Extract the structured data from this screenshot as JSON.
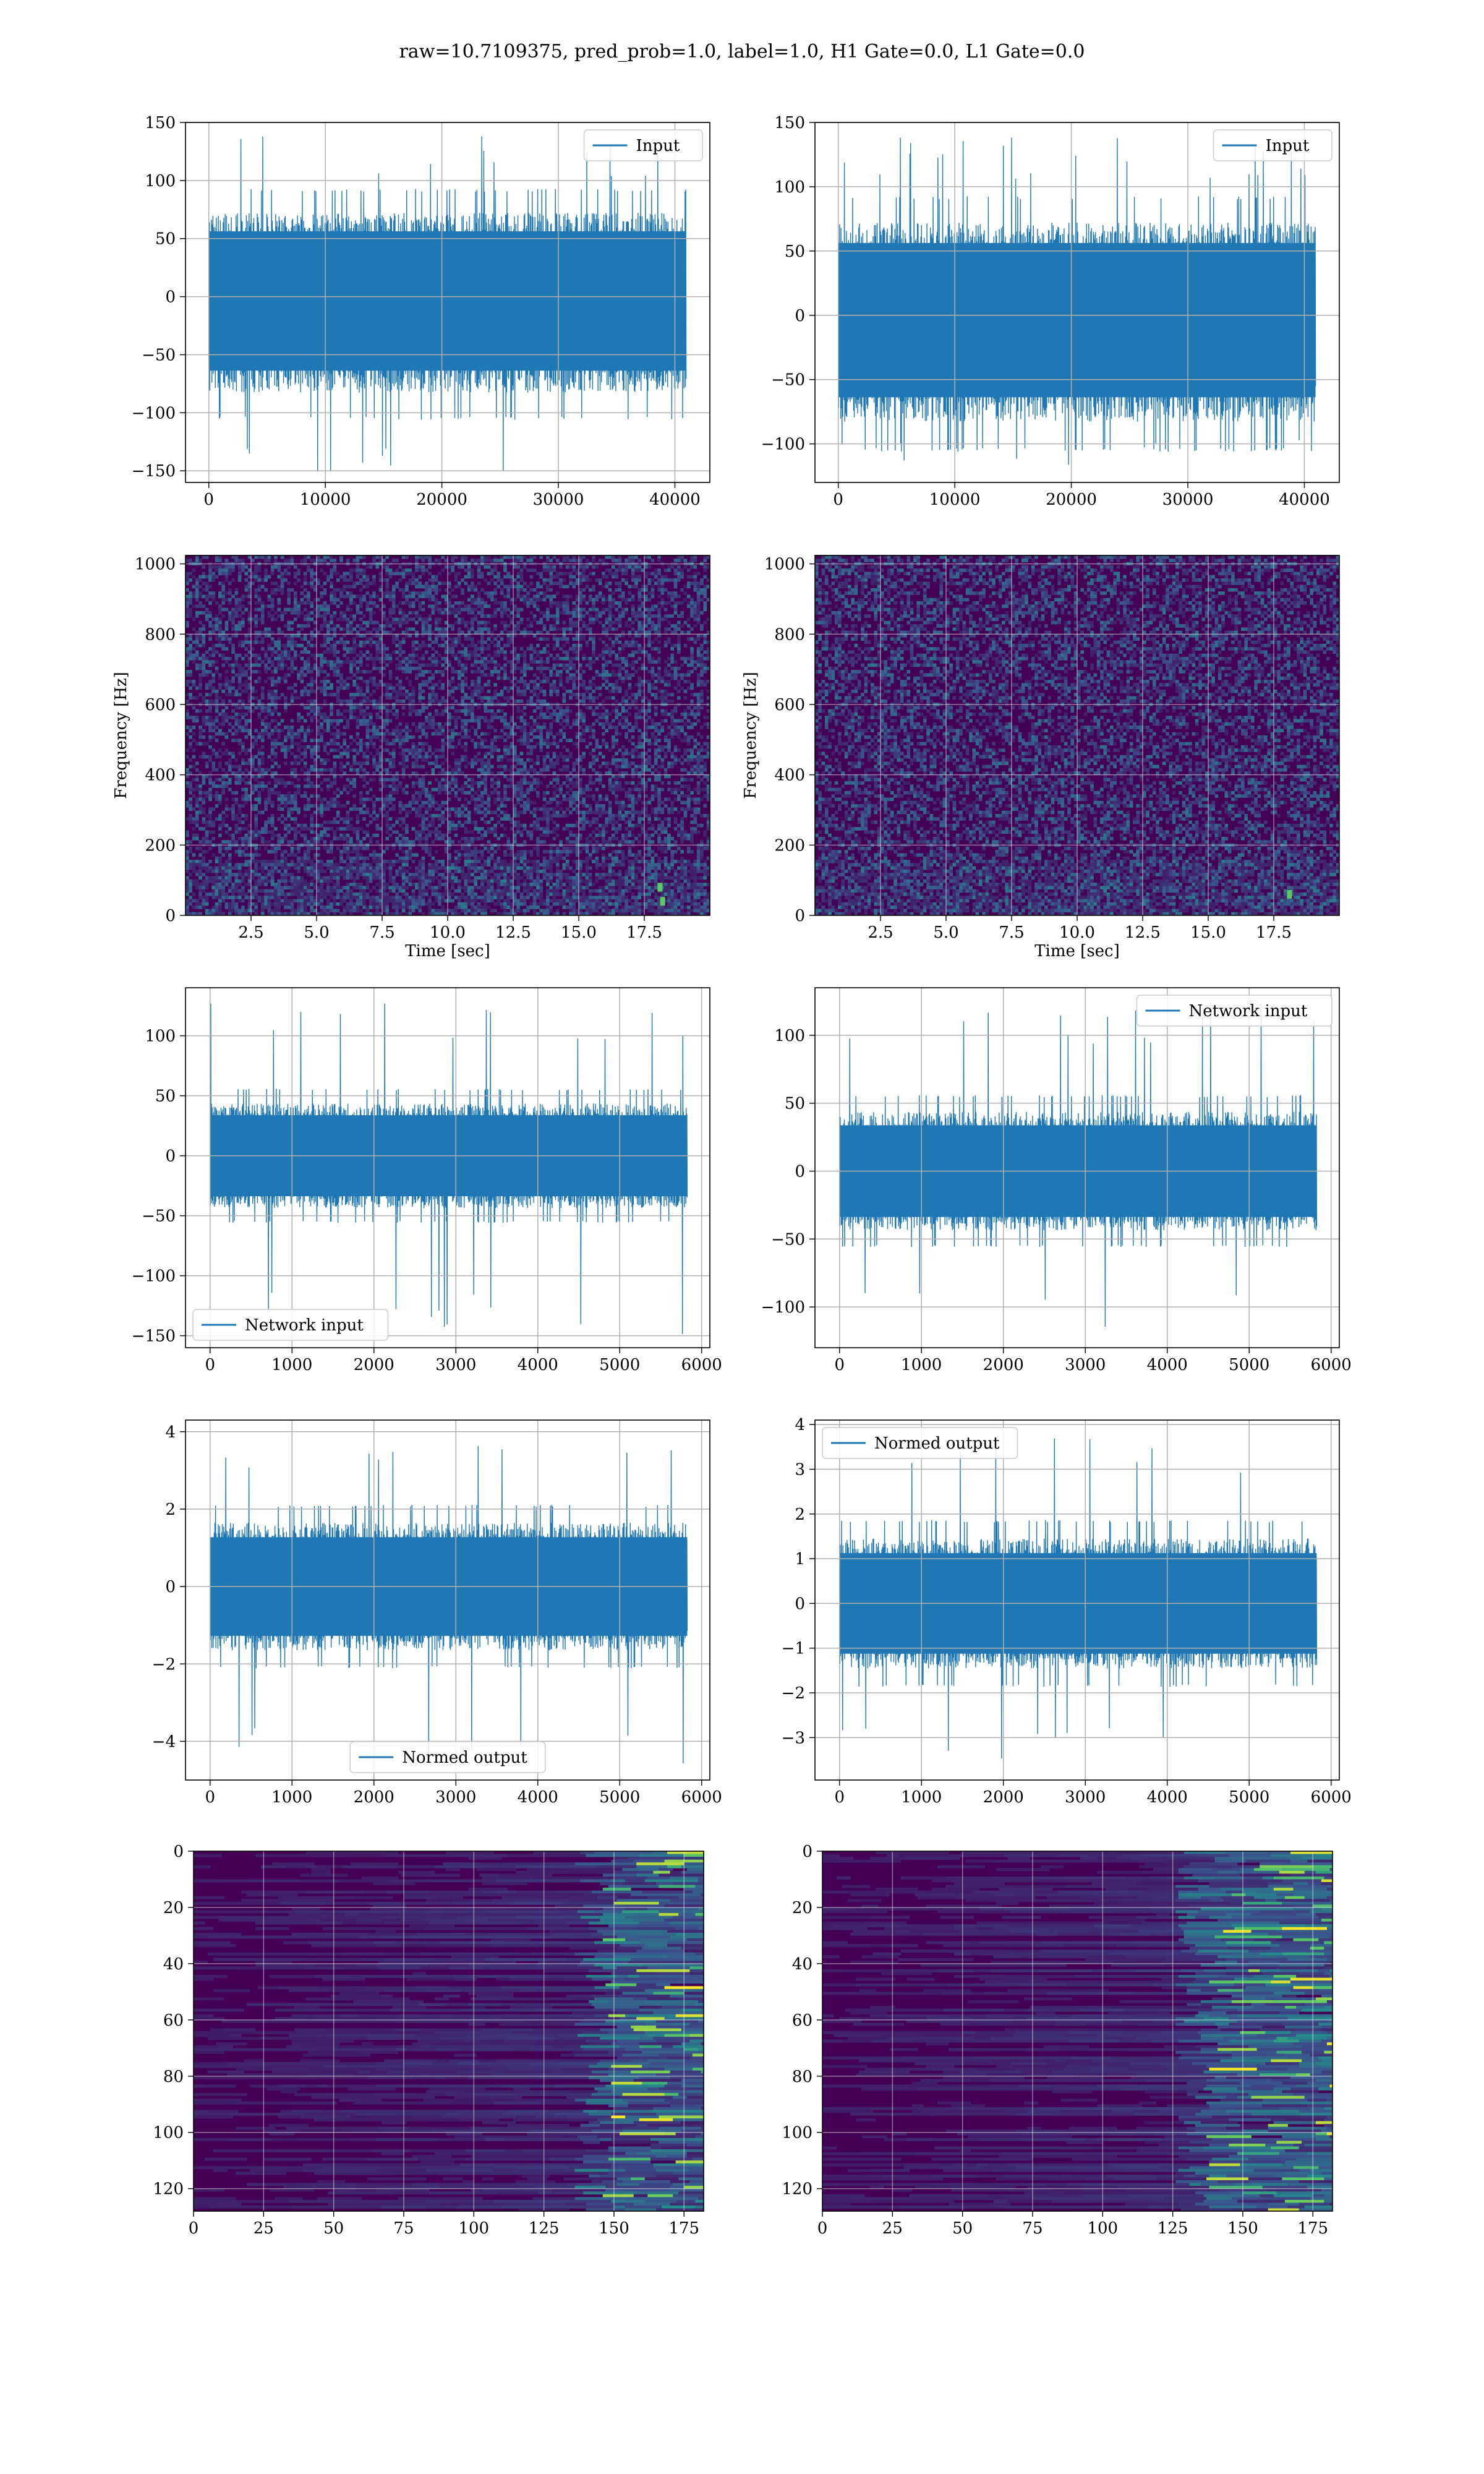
{
  "figure": {
    "title": "raw=10.7109375, pred_prob=1.0, label=1.0, H1 Gate=0.0, L1 Gate=0.0"
  },
  "colors": {
    "line": "#1f77b4",
    "viridis_dark": "#440154",
    "viridis_mid": "#3b528b",
    "viridis_teal": "#21918c",
    "viridis_green": "#5ec962",
    "viridis_yellow": "#fde725",
    "grid": "#b0b0b0"
  },
  "chart_data": [
    {
      "id": "input-h1",
      "type": "line",
      "series": [
        {
          "name": "Input",
          "n_samples": 40960,
          "center": -5,
          "band": [
            -85,
            75
          ],
          "peaks": [
            -152,
            139
          ]
        }
      ],
      "legend": {
        "label": "Input",
        "position": "top-right"
      },
      "xlim": [
        -2000,
        43000
      ],
      "ylim": [
        -160,
        150
      ],
      "xticks": [
        0,
        10000,
        20000,
        30000,
        40000
      ],
      "xtick_labels": [
        "0",
        "10000",
        "20000",
        "30000",
        "40000"
      ],
      "yticks": [
        -150,
        -100,
        -50,
        0,
        50,
        100,
        150
      ],
      "ytick_labels": [
        "−150",
        "−100",
        "−50",
        "0",
        "50",
        "100",
        "150"
      ],
      "grid": true
    },
    {
      "id": "input-l1",
      "type": "line",
      "series": [
        {
          "name": "Input",
          "n_samples": 40960,
          "center": -5,
          "band": [
            -85,
            75
          ],
          "peaks": [
            -120,
            140
          ]
        }
      ],
      "legend": {
        "label": "Input",
        "position": "top-right"
      },
      "xlim": [
        -2000,
        43000
      ],
      "ylim": [
        -130,
        150
      ],
      "xticks": [
        0,
        10000,
        20000,
        30000,
        40000
      ],
      "xtick_labels": [
        "0",
        "10000",
        "20000",
        "30000",
        "40000"
      ],
      "yticks": [
        -100,
        -50,
        0,
        50,
        100,
        150
      ],
      "ytick_labels": [
        "−100",
        "−50",
        "0",
        "50",
        "100",
        "150"
      ],
      "grid": true
    },
    {
      "id": "spec-h1",
      "type": "heatmap",
      "xlabel": "Time [sec]",
      "ylabel": "Frequency [Hz]",
      "xlim": [
        0,
        20
      ],
      "ylim": [
        0,
        1024
      ],
      "xticks": [
        2.5,
        5.0,
        7.5,
        10.0,
        12.5,
        15.0,
        17.5
      ],
      "xtick_labels": [
        "2.5",
        "5.0",
        "7.5",
        "10.0",
        "12.5",
        "15.0",
        "17.5"
      ],
      "yticks": [
        0,
        200,
        400,
        600,
        800,
        1000
      ],
      "ytick_labels": [
        "0",
        "200",
        "400",
        "600",
        "800",
        "1000"
      ],
      "grid": true,
      "hotspots": [
        {
          "t": 18.2,
          "f": 40
        },
        {
          "t": 18.1,
          "f": 80
        }
      ]
    },
    {
      "id": "spec-l1",
      "type": "heatmap",
      "xlabel": "Time [sec]",
      "ylabel": "Frequency [Hz]",
      "xlim": [
        0,
        20
      ],
      "ylim": [
        0,
        1024
      ],
      "xticks": [
        2.5,
        5.0,
        7.5,
        10.0,
        12.5,
        15.0,
        17.5
      ],
      "xtick_labels": [
        "2.5",
        "5.0",
        "7.5",
        "10.0",
        "12.5",
        "15.0",
        "17.5"
      ],
      "yticks": [
        0,
        200,
        400,
        600,
        800,
        1000
      ],
      "ytick_labels": [
        "0",
        "200",
        "400",
        "600",
        "800",
        "1000"
      ],
      "grid": true,
      "hotspots": [
        {
          "t": 18.1,
          "f": 60
        }
      ]
    },
    {
      "id": "network-h1",
      "type": "line",
      "series": [
        {
          "name": "Network input",
          "n_samples": 5824,
          "center": 0,
          "band": [
            -45,
            45
          ],
          "peaks": [
            -150,
            128
          ]
        }
      ],
      "legend": {
        "label": "Network input",
        "position": "bottom-left"
      },
      "xlim": [
        -300,
        6100
      ],
      "ylim": [
        -160,
        140
      ],
      "xticks": [
        0,
        1000,
        2000,
        3000,
        4000,
        5000,
        6000
      ],
      "xtick_labels": [
        "0",
        "1000",
        "2000",
        "3000",
        "4000",
        "5000",
        "6000"
      ],
      "yticks": [
        -150,
        -100,
        -50,
        0,
        50,
        100
      ],
      "ytick_labels": [
        "−150",
        "−100",
        "−50",
        "0",
        "50",
        "100"
      ],
      "grid": true
    },
    {
      "id": "network-l1",
      "type": "line",
      "series": [
        {
          "name": "Network input",
          "n_samples": 5824,
          "center": 0,
          "band": [
            -45,
            45
          ],
          "peaks": [
            -117,
            125
          ]
        }
      ],
      "legend": {
        "label": "Network input",
        "position": "top-right"
      },
      "xlim": [
        -300,
        6100
      ],
      "ylim": [
        -130,
        135
      ],
      "xticks": [
        0,
        1000,
        2000,
        3000,
        4000,
        5000,
        6000
      ],
      "xtick_labels": [
        "0",
        "1000",
        "2000",
        "3000",
        "4000",
        "5000",
        "6000"
      ],
      "yticks": [
        -100,
        -50,
        0,
        50,
        100
      ],
      "ytick_labels": [
        "−100",
        "−50",
        "0",
        "50",
        "100"
      ],
      "grid": true
    },
    {
      "id": "normed-h1",
      "type": "line",
      "series": [
        {
          "name": "Normed output",
          "n_samples": 5824,
          "center": 0,
          "band": [
            -1.7,
            1.7
          ],
          "peaks": [
            -4.6,
            3.9
          ]
        }
      ],
      "legend": {
        "label": "Normed output",
        "position": "bottom-center"
      },
      "xlim": [
        -300,
        6100
      ],
      "ylim": [
        -5.0,
        4.3
      ],
      "xticks": [
        0,
        1000,
        2000,
        3000,
        4000,
        5000,
        6000
      ],
      "xtick_labels": [
        "0",
        "1000",
        "2000",
        "3000",
        "4000",
        "5000",
        "6000"
      ],
      "yticks": [
        -4,
        -2,
        0,
        2,
        4
      ],
      "ytick_labels": [
        "−4",
        "−2",
        "0",
        "2",
        "4"
      ],
      "grid": true
    },
    {
      "id": "normed-l1",
      "type": "line",
      "series": [
        {
          "name": "Normed output",
          "n_samples": 5824,
          "center": 0,
          "band": [
            -1.5,
            1.5
          ],
          "peaks": [
            -3.5,
            3.7
          ]
        }
      ],
      "legend": {
        "label": "Normed output",
        "position": "top-left"
      },
      "xlim": [
        -300,
        6100
      ],
      "ylim": [
        -3.95,
        4.1
      ],
      "xticks": [
        0,
        1000,
        2000,
        3000,
        4000,
        5000,
        6000
      ],
      "xtick_labels": [
        "0",
        "1000",
        "2000",
        "3000",
        "4000",
        "5000",
        "6000"
      ],
      "yticks": [
        -3,
        -2,
        -1,
        0,
        1,
        2,
        3,
        4
      ],
      "ytick_labels": [
        "−3",
        "−2",
        "−1",
        "0",
        "1",
        "2",
        "3",
        "4"
      ],
      "grid": true
    },
    {
      "id": "feature-h1",
      "type": "heatmap",
      "xlim": [
        0,
        182
      ],
      "ylim": [
        128,
        0
      ],
      "xticks": [
        0,
        25,
        50,
        75,
        100,
        125,
        150,
        175
      ],
      "xtick_labels": [
        "0",
        "25",
        "50",
        "75",
        "100",
        "125",
        "150",
        "175"
      ],
      "yticks": [
        0,
        20,
        40,
        60,
        80,
        100,
        120
      ],
      "ytick_labels": [
        "0",
        "20",
        "40",
        "60",
        "80",
        "100",
        "120"
      ],
      "grid": true,
      "bright_region_cols": [
        145,
        182
      ]
    },
    {
      "id": "feature-l1",
      "type": "heatmap",
      "xlim": [
        0,
        182
      ],
      "ylim": [
        128,
        0
      ],
      "xticks": [
        0,
        25,
        50,
        75,
        100,
        125,
        150,
        175
      ],
      "xtick_labels": [
        "0",
        "25",
        "50",
        "75",
        "100",
        "125",
        "150",
        "175"
      ],
      "yticks": [
        0,
        20,
        40,
        60,
        80,
        100,
        120
      ],
      "ytick_labels": [
        "0",
        "20",
        "40",
        "60",
        "80",
        "100",
        "120"
      ],
      "grid": true,
      "bright_region_cols": [
        135,
        182
      ]
    }
  ]
}
